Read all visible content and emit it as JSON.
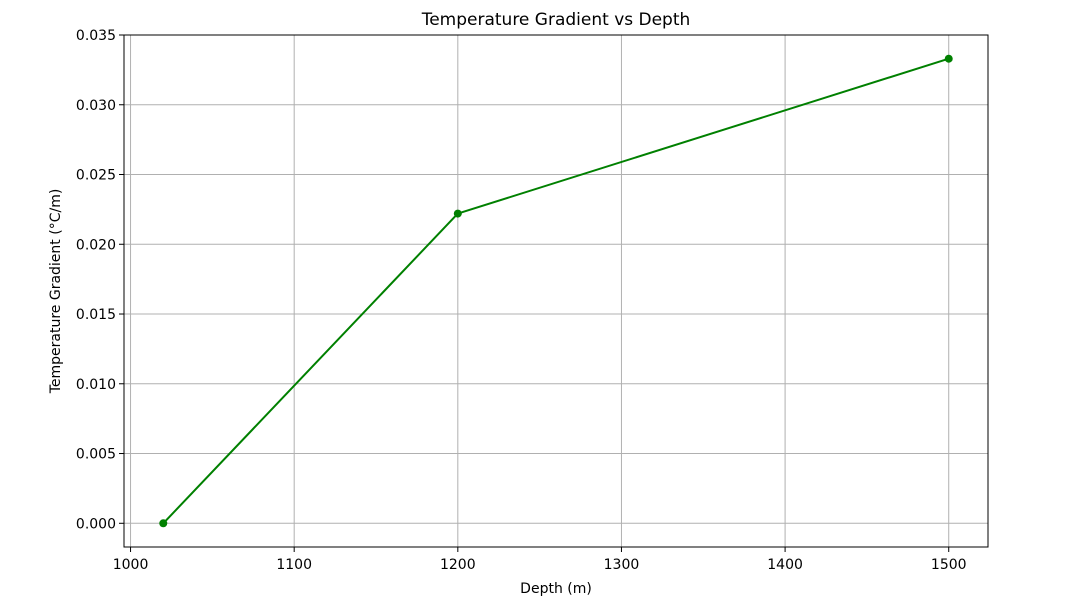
{
  "chart_data": {
    "type": "line",
    "title": "Temperature Gradient vs Depth",
    "xlabel": "Depth (m)",
    "ylabel": "Temperature Gradient (°C/m)",
    "x": [
      1020,
      1200,
      1500
    ],
    "series": [
      {
        "values": [
          0.0,
          0.0222,
          0.0333
        ],
        "color": "#008000",
        "marker": "circle"
      }
    ],
    "xlim": [
      996,
      1524
    ],
    "ylim": [
      -0.0017,
      0.035
    ],
    "xticks": [
      1000,
      1100,
      1200,
      1300,
      1400,
      1500
    ],
    "xtick_labels": [
      "1000",
      "1100",
      "1200",
      "1300",
      "1400",
      "1500"
    ],
    "yticks": [
      0.0,
      0.005,
      0.01,
      0.015,
      0.02,
      0.025,
      0.03,
      0.035
    ],
    "ytick_labels": [
      "0.000",
      "0.005",
      "0.010",
      "0.015",
      "0.020",
      "0.025",
      "0.030",
      "0.035"
    ],
    "grid": true,
    "legend": false
  }
}
